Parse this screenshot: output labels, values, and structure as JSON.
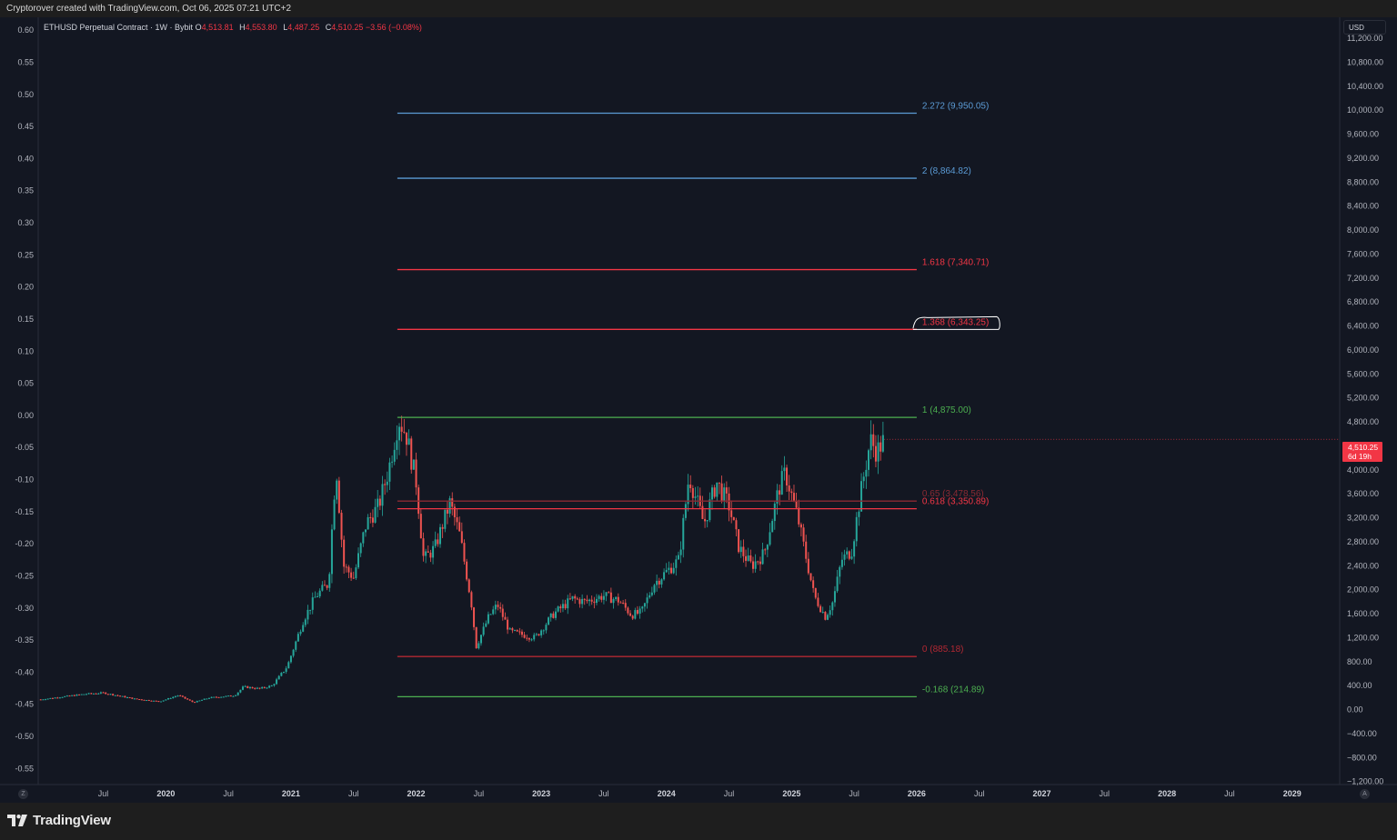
{
  "header": {
    "text": "Cryptorover created with TradingView.com, Oct 06, 2025 07:21 UTC+2"
  },
  "legend": {
    "symbol": "ETHUSD Perpetual Contract · 1W · Bybit",
    "o_label": "O",
    "o_value": "4,513.81",
    "h_label": "H",
    "h_value": "4,553.80",
    "l_label": "L",
    "l_value": "4,487.25",
    "c_label": "C",
    "c_value": "4,510.25 −3.56 (−0.08%)"
  },
  "currency": "USD",
  "price_badge": {
    "price": "4,510.25",
    "countdown": "6d 19h"
  },
  "footer": {
    "brand": "TradingView"
  },
  "axis_buttons": {
    "left": "Z",
    "right": "A"
  },
  "colors": {
    "background": "#131722",
    "up": "#26a69a",
    "down": "#ef5350",
    "fib_blue": "#5b9bd5",
    "fib_red": "#f23645",
    "fib_green": "#4caf50",
    "fib_dark_red": "#b22833"
  },
  "chart_data": {
    "type": "candlestick",
    "symbol": "ETHUSD",
    "timeframe": "1W",
    "left_axis": {
      "ticks": [
        "0.60",
        "0.55",
        "0.50",
        "0.45",
        "0.40",
        "0.35",
        "0.30",
        "0.25",
        "0.20",
        "0.15",
        "0.10",
        "0.05",
        "0.00",
        "-0.05",
        "-0.10",
        "-0.15",
        "-0.20",
        "-0.25",
        "-0.30",
        "-0.35",
        "-0.40",
        "-0.45",
        "-0.50",
        "-0.55"
      ],
      "ylim": [
        -0.575,
        0.62
      ]
    },
    "right_axis": {
      "ticks": [
        "11,200.00",
        "10,800.00",
        "10,400.00",
        "10,000.00",
        "9,600.00",
        "9,200.00",
        "8,800.00",
        "8,400.00",
        "8,000.00",
        "7,600.00",
        "7,200.00",
        "6,800.00",
        "6,400.00",
        "6,000.00",
        "5,600.00",
        "5,200.00",
        "4,800.00",
        "4,400.00",
        "4,000.00",
        "3,600.00",
        "3,200.00",
        "2,800.00",
        "2,400.00",
        "2,000.00",
        "1,600.00",
        "1,200.00",
        "800.00",
        "400.00",
        "0.00",
        "−400.00",
        "−800.00",
        "−1,200.00"
      ],
      "ylim": [
        -1250,
        11550
      ]
    },
    "x_axis": {
      "ticks": [
        {
          "label": "Jul",
          "t": 2019.5,
          "bold": false
        },
        {
          "label": "2020",
          "t": 2020.0,
          "bold": true
        },
        {
          "label": "Jul",
          "t": 2020.5,
          "bold": false
        },
        {
          "label": "2021",
          "t": 2021.0,
          "bold": true
        },
        {
          "label": "Jul",
          "t": 2021.5,
          "bold": false
        },
        {
          "label": "2022",
          "t": 2022.0,
          "bold": true
        },
        {
          "label": "Jul",
          "t": 2022.5,
          "bold": false
        },
        {
          "label": "2023",
          "t": 2023.0,
          "bold": true
        },
        {
          "label": "Jul",
          "t": 2023.5,
          "bold": false
        },
        {
          "label": "2024",
          "t": 2024.0,
          "bold": true
        },
        {
          "label": "Jul",
          "t": 2024.5,
          "bold": false
        },
        {
          "label": "2025",
          "t": 2025.0,
          "bold": true
        },
        {
          "label": "Jul",
          "t": 2025.5,
          "bold": false
        },
        {
          "label": "2026",
          "t": 2026.0,
          "bold": true
        },
        {
          "label": "Jul",
          "t": 2026.5,
          "bold": false
        },
        {
          "label": "2027",
          "t": 2027.0,
          "bold": true
        },
        {
          "label": "Jul",
          "t": 2027.5,
          "bold": false
        },
        {
          "label": "2028",
          "t": 2028.0,
          "bold": true
        },
        {
          "label": "Jul",
          "t": 2028.5,
          "bold": false
        },
        {
          "label": "2029",
          "t": 2029.0,
          "bold": true
        }
      ],
      "xlim": [
        2018.98,
        2029.38
      ]
    },
    "price_path": [
      [
        2019.0,
        170
      ],
      [
        2019.35,
        260
      ],
      [
        2019.5,
        280
      ],
      [
        2019.75,
        180
      ],
      [
        2019.95,
        135
      ],
      [
        2020.1,
        240
      ],
      [
        2020.22,
        120
      ],
      [
        2020.35,
        200
      ],
      [
        2020.55,
        235
      ],
      [
        2020.62,
        380
      ],
      [
        2020.75,
        350
      ],
      [
        2020.85,
        400
      ],
      [
        2020.97,
        720
      ],
      [
        2021.1,
        1500
      ],
      [
        2021.2,
        1900
      ],
      [
        2021.3,
        2100
      ],
      [
        2021.36,
        4100
      ],
      [
        2021.42,
        2400
      ],
      [
        2021.5,
        2200
      ],
      [
        2021.6,
        3100
      ],
      [
        2021.7,
        3400
      ],
      [
        2021.78,
        4000
      ],
      [
        2021.86,
        4850
      ],
      [
        2021.92,
        4600
      ],
      [
        2022.0,
        3800
      ],
      [
        2022.06,
        2500
      ],
      [
        2022.15,
        2700
      ],
      [
        2022.27,
        3450
      ],
      [
        2022.35,
        2900
      ],
      [
        2022.44,
        1800
      ],
      [
        2022.48,
        1050
      ],
      [
        2022.58,
        1550
      ],
      [
        2022.65,
        1750
      ],
      [
        2022.75,
        1300
      ],
      [
        2022.85,
        1250
      ],
      [
        2022.95,
        1200
      ],
      [
        2023.1,
        1600
      ],
      [
        2023.25,
        1850
      ],
      [
        2023.35,
        1800
      ],
      [
        2023.5,
        1900
      ],
      [
        2023.62,
        1820
      ],
      [
        2023.72,
        1580
      ],
      [
        2023.8,
        1620
      ],
      [
        2023.9,
        2100
      ],
      [
        2024.0,
        2300
      ],
      [
        2024.1,
        2500
      ],
      [
        2024.18,
        3900
      ],
      [
        2024.3,
        3100
      ],
      [
        2024.4,
        3800
      ],
      [
        2024.5,
        3400
      ],
      [
        2024.58,
        2700
      ],
      [
        2024.68,
        2400
      ],
      [
        2024.78,
        2600
      ],
      [
        2024.9,
        3700
      ],
      [
        2024.95,
        3950
      ],
      [
        2025.05,
        3200
      ],
      [
        2025.1,
        2700
      ],
      [
        2025.18,
        1900
      ],
      [
        2025.27,
        1550
      ],
      [
        2025.33,
        1800
      ],
      [
        2025.4,
        2500
      ],
      [
        2025.48,
        2650
      ],
      [
        2025.56,
        3700
      ],
      [
        2025.63,
        4500
      ],
      [
        2025.68,
        4300
      ],
      [
        2025.74,
        4500
      ]
    ],
    "fib_levels": [
      {
        "ratio": "2.272",
        "price": 9950.05,
        "label": "2.272 (9,950.05)",
        "color": "#5b9bd5"
      },
      {
        "ratio": "2",
        "price": 8864.82,
        "label": "2 (8,864.82)",
        "color": "#5b9bd5"
      },
      {
        "ratio": "1.618",
        "price": 7340.71,
        "label": "1.618 (7,340.71)",
        "color": "#f23645"
      },
      {
        "ratio": "1.368",
        "price": 6343.25,
        "label": "1.368 (6,343.25)",
        "color": "#f23645",
        "highlighted": true
      },
      {
        "ratio": "1",
        "price": 4875.0,
        "label": "1 (4,875.00)",
        "color": "#4caf50"
      },
      {
        "ratio": "0.65",
        "price": 3478.56,
        "label": "0.65 (3,478.56)",
        "color": "#8b2a33"
      },
      {
        "ratio": "0.618",
        "price": 3350.89,
        "label": "0.618 (3,350.89)",
        "color": "#f23645"
      },
      {
        "ratio": "0",
        "price": 885.18,
        "label": "0 (885.18)",
        "color": "#b22833"
      },
      {
        "ratio": "-0.168",
        "price": 214.89,
        "label": "-0.168 (214.89)",
        "color": "#4caf50"
      }
    ],
    "fib_time_range": [
      2021.85,
      2026.0
    ],
    "last_price": 4510.25
  }
}
